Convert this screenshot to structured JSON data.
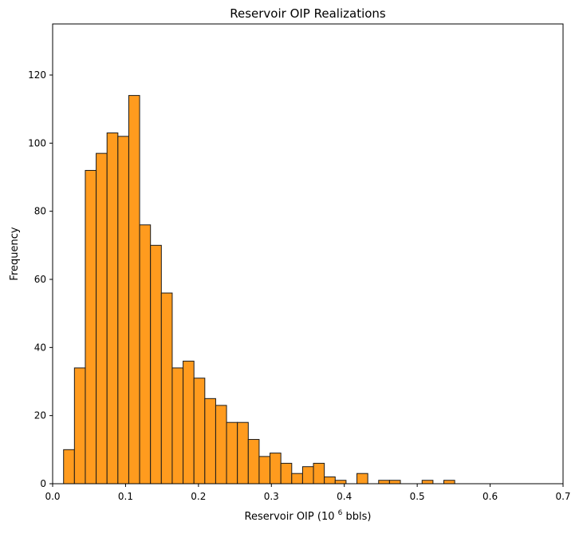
{
  "chart_data": {
    "type": "bar",
    "title": "Reservoir OIP Realizations",
    "xlabel_main": "Reservoir OIP (10",
    "xlabel_sup": "6",
    "xlabel_tail": " bbls)",
    "ylabel": "Frequency",
    "xlim": [
      0.0,
      0.7
    ],
    "ylim": [
      0,
      135
    ],
    "xticks": [
      "0.0",
      "0.1",
      "0.2",
      "0.3",
      "0.4",
      "0.5",
      "0.6",
      "0.7"
    ],
    "yticks": [
      "0",
      "20",
      "40",
      "60",
      "80",
      "100",
      "120"
    ],
    "bin_start": 0.015,
    "bin_width": 0.0149,
    "values": [
      10,
      34,
      92,
      97,
      103,
      102,
      114,
      76,
      70,
      56,
      34,
      36,
      31,
      25,
      23,
      18,
      18,
      13,
      8,
      9,
      6,
      3,
      5,
      6,
      2,
      1,
      0,
      3,
      0,
      1,
      1,
      0,
      0,
      1,
      0,
      1
    ],
    "bar_color": "#ff9b1e",
    "edge_color": "#1a1a1a",
    "grid": false,
    "legend": "none"
  }
}
